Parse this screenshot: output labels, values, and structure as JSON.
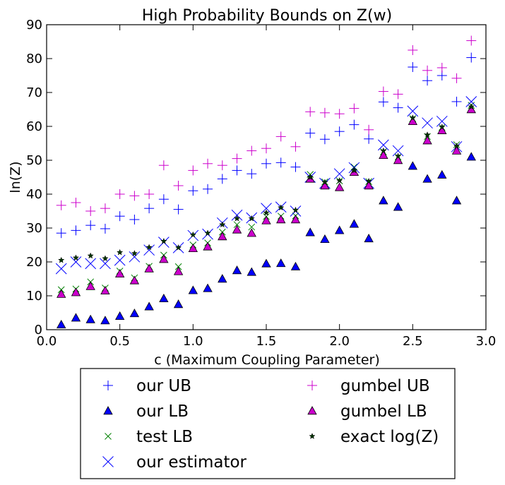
{
  "chart_data": {
    "type": "scatter",
    "title": "High Probability Bounds on Z(w)",
    "xlabel": "c (Maximum Coupling Parameter)",
    "ylabel": "ln(Z)",
    "xlim": [
      0.0,
      3.0
    ],
    "ylim": [
      0,
      90
    ],
    "xticks": [
      "0.0",
      "0.5",
      "1.0",
      "1.5",
      "2.0",
      "2.5",
      "3.0"
    ],
    "yticks": [
      "0",
      "10",
      "20",
      "30",
      "40",
      "50",
      "60",
      "70",
      "80",
      "90"
    ],
    "grid": false,
    "legend_position": "below",
    "x": [
      0.1,
      0.2,
      0.3,
      0.4,
      0.5,
      0.6,
      0.7,
      0.8,
      0.9,
      1.0,
      1.1,
      1.2,
      1.3,
      1.4,
      1.5,
      1.6,
      1.7,
      1.8,
      1.9,
      2.0,
      2.1,
      2.2,
      2.3,
      2.4,
      2.5,
      2.6,
      2.7,
      2.8,
      2.9
    ],
    "series": [
      {
        "name": "our UB",
        "marker": "plus",
        "color": "#0000ff",
        "values": [
          28.5,
          29.3,
          30.8,
          29.8,
          33.5,
          32.5,
          35.8,
          38.5,
          35.5,
          41.0,
          41.5,
          44.5,
          47.0,
          46.0,
          49.0,
          49.3,
          48.0,
          58.0,
          56.2,
          58.5,
          60.5,
          56.3,
          67.2,
          65.5,
          77.5,
          73.5,
          75.0,
          67.3,
          80.3
        ]
      },
      {
        "name": "our LB",
        "marker": "triangle",
        "color": "#0000ff",
        "values": [
          1.5,
          3.5,
          3.0,
          2.7,
          4.0,
          4.8,
          6.8,
          9.2,
          7.5,
          11.6,
          12.2,
          15.0,
          17.5,
          17.0,
          19.5,
          19.6,
          18.6,
          28.7,
          26.7,
          29.3,
          31.2,
          26.9,
          38.1,
          36.2,
          48.3,
          44.5,
          45.7,
          38.1,
          51.0
        ]
      },
      {
        "name": "test LB",
        "marker": "x-small",
        "color": "#008000",
        "values": [
          11.8,
          12.0,
          14.1,
          12.3,
          17.3,
          15.3,
          18.7,
          22.0,
          18.6,
          25.0,
          25.6,
          28.8,
          31.0,
          30.3,
          33.4,
          33.5,
          33.6,
          45.8,
          43.6,
          43.9,
          48.0,
          43.7,
          52.5,
          51.0,
          62.3,
          57.0,
          59.7,
          54.6,
          66.2
        ]
      },
      {
        "name": "our estimator",
        "marker": "x-large",
        "color": "#0000ff",
        "values": [
          18.0,
          20.0,
          19.5,
          19.5,
          20.5,
          21.5,
          23.5,
          25.8,
          24.2,
          27.8,
          28.2,
          31.5,
          33.8,
          33.0,
          35.8,
          36.2,
          35.0,
          45.0,
          43.2,
          46.0,
          47.8,
          43.2,
          54.5,
          52.8,
          64.5,
          61.0,
          61.5,
          54.0,
          67.3
        ]
      },
      {
        "name": "gumbel UB",
        "marker": "plus",
        "color": "#cc00cc",
        "values": [
          36.7,
          37.5,
          35.0,
          35.8,
          40.0,
          39.5,
          40.0,
          48.5,
          42.5,
          47.0,
          49.0,
          48.5,
          50.5,
          52.8,
          53.5,
          57.0,
          54.0,
          64.3,
          64.0,
          63.7,
          65.3,
          59.0,
          70.3,
          69.5,
          82.5,
          76.5,
          77.3,
          74.2,
          85.3
        ]
      },
      {
        "name": "gumbel LB",
        "marker": "triangle",
        "color": "#cc00cc",
        "values": [
          10.5,
          11.0,
          12.8,
          11.5,
          16.5,
          14.5,
          18.0,
          20.8,
          17.2,
          24.0,
          24.5,
          27.5,
          29.5,
          28.5,
          32.2,
          32.5,
          32.5,
          44.5,
          42.5,
          42.0,
          46.5,
          42.5,
          51.5,
          50.0,
          61.5,
          55.8,
          58.8,
          52.8,
          65.0
        ]
      },
      {
        "name": "exact log(Z)",
        "marker": "star",
        "color": "#000000",
        "values": [
          20.5,
          21.2,
          21.8,
          21.0,
          22.8,
          22.5,
          24.3,
          26.1,
          24.2,
          28.0,
          28.5,
          31.0,
          32.8,
          32.8,
          34.5,
          36.0,
          35.3,
          45.0,
          43.5,
          44.0,
          47.0,
          43.8,
          52.8,
          51.2,
          62.5,
          57.5,
          59.8,
          54.2,
          65.8
        ]
      }
    ],
    "legend_order": [
      0,
      4,
      1,
      5,
      2,
      6,
      3
    ]
  }
}
